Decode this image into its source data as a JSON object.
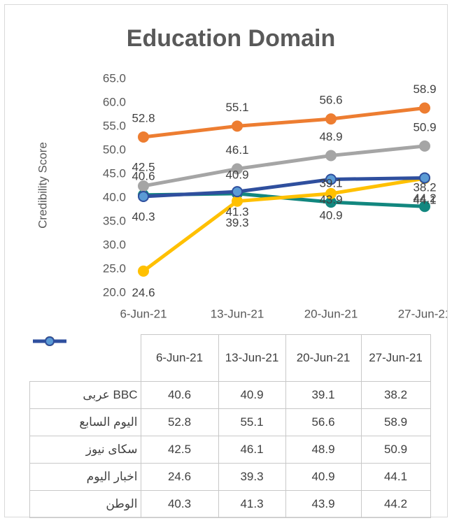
{
  "chart_data": {
    "type": "line",
    "title": "Education Domain",
    "y_label": "Credibility Score",
    "categories": [
      "6-Jun-21",
      "13-Jun-21",
      "20-Jun-21",
      "27-Jun-21"
    ],
    "series": [
      {
        "name": "عربى BBC",
        "color": "#12877f",
        "values": [
          40.6,
          40.9,
          39.1,
          38.2
        ]
      },
      {
        "name": "اليوم السابع",
        "color": "#ed7d31",
        "values": [
          52.8,
          55.1,
          56.6,
          58.9
        ]
      },
      {
        "name": "سكاى نيوز",
        "color": "#a5a5a5",
        "values": [
          42.5,
          46.1,
          48.9,
          50.9
        ]
      },
      {
        "name": "اخبار اليوم",
        "color": "#ffc000",
        "values": [
          24.6,
          39.3,
          40.9,
          44.1
        ]
      },
      {
        "name": "الوطن",
        "color": "#2f4f9e",
        "values": [
          40.3,
          41.3,
          43.9,
          44.2
        ]
      }
    ],
    "ylim": [
      20,
      65
    ],
    "yticks": [
      {
        "value": 20,
        "label": "20.0"
      },
      {
        "value": 25,
        "label": "25.0"
      },
      {
        "value": 30,
        "label": "30.0"
      },
      {
        "value": 35,
        "label": "35.0"
      },
      {
        "value": 40,
        "label": "40.0"
      },
      {
        "value": 45,
        "label": "45.0"
      },
      {
        "value": 50,
        "label": "50.0"
      },
      {
        "value": 55,
        "label": "55.0"
      },
      {
        "value": 60,
        "label": "60.0"
      },
      {
        "value": 65,
        "label": "65.0"
      }
    ],
    "data_table": true
  }
}
